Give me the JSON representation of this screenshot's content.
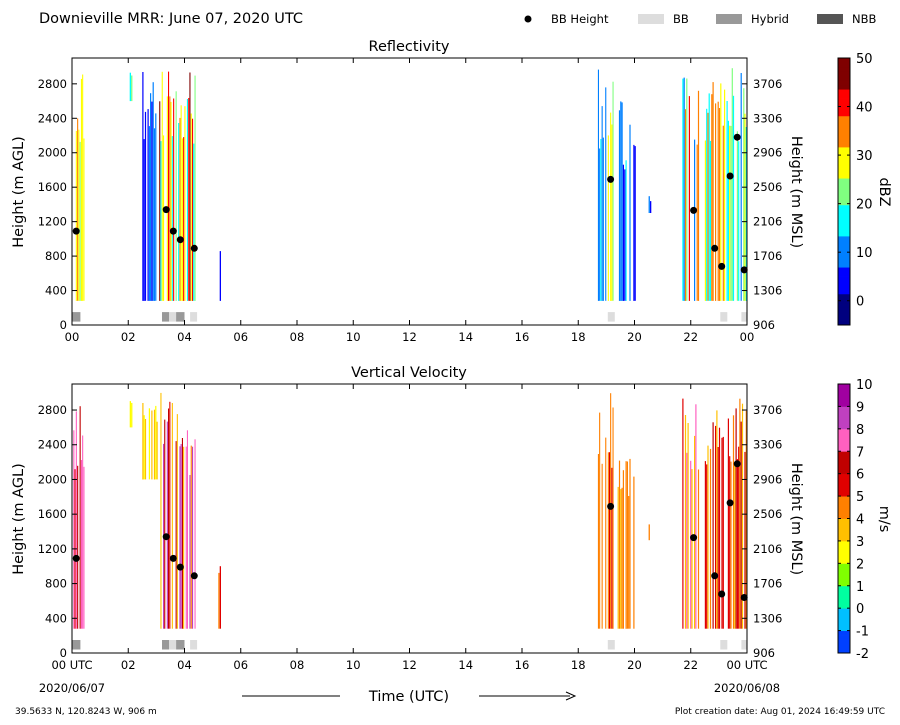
{
  "header": {
    "title": "Downieville MRR:  June 07, 2020 UTC",
    "legend": [
      {
        "label": "BB Height",
        "kind": "dot",
        "color": "#000000"
      },
      {
        "label": "BB",
        "kind": "box",
        "color": "#dddddd"
      },
      {
        "label": "Hybrid",
        "kind": "box",
        "color": "#999999"
      },
      {
        "label": "NBB",
        "kind": "box",
        "color": "#555555"
      }
    ]
  },
  "footer": {
    "location": "39.5633 N, 120.8243 W, 906 m",
    "created": "Plot creation date: Aug 01, 2024 16:49:59 UTC",
    "time_label": "Time (UTC)"
  },
  "colors": {
    "bb": "#dddddd",
    "hybrid": "#999999",
    "nbb": "#555555",
    "refl_scale": [
      "#00007f",
      "#0000ff",
      "#0080ff",
      "#00ffff",
      "#80ff80",
      "#ffff00",
      "#ff8000",
      "#ff0000",
      "#7f0000"
    ],
    "vel_scale": [
      "#0040ff",
      "#00c0ff",
      "#00ffa0",
      "#80ff00",
      "#ffff00",
      "#ffc000",
      "#ff8000",
      "#e00000",
      "#c00000",
      "#ff60c0",
      "#c040c0",
      "#a000a0"
    ]
  },
  "chart_data": [
    {
      "type": "heatmap",
      "title": "Reflectivity",
      "xlabel": "",
      "ylabel": "Height (m AGL)",
      "ylabel_right": "Height (m MSL)",
      "xlim": [
        0,
        24
      ],
      "ylim": [
        0,
        3100
      ],
      "x_ticks": [
        "00",
        "02",
        "04",
        "06",
        "08",
        "10",
        "12",
        "14",
        "16",
        "18",
        "20",
        "22",
        "00"
      ],
      "y_ticks": [
        0,
        400,
        800,
        1200,
        1600,
        2000,
        2400,
        2800
      ],
      "y_ticks_right": [
        "906",
        "1306",
        "1706",
        "2106",
        "2506",
        "2906",
        "3306",
        "3706"
      ],
      "colorbar": {
        "label": "dBZ",
        "ticks": [
          0,
          10,
          20,
          30,
          40,
          50
        ],
        "range": [
          -5,
          50
        ]
      },
      "bb_height": [
        {
          "x": 0.15,
          "y": 1090
        },
        {
          "x": 3.35,
          "y": 1340
        },
        {
          "x": 3.6,
          "y": 1090
        },
        {
          "x": 3.85,
          "y": 990
        },
        {
          "x": 4.35,
          "y": 890
        },
        {
          "x": 19.15,
          "y": 1690
        },
        {
          "x": 22.1,
          "y": 1330
        },
        {
          "x": 22.85,
          "y": 890
        },
        {
          "x": 23.1,
          "y": 680
        },
        {
          "x": 23.4,
          "y": 1730
        },
        {
          "x": 23.65,
          "y": 2180
        },
        {
          "x": 23.9,
          "y": 640
        }
      ],
      "bb_type": [
        {
          "x0": 0.0,
          "x1": 0.3,
          "type": "hybrid"
        },
        {
          "x0": 3.2,
          "x1": 3.45,
          "type": "hybrid"
        },
        {
          "x0": 3.45,
          "x1": 3.7,
          "type": "bb"
        },
        {
          "x0": 3.7,
          "x1": 4.0,
          "type": "hybrid"
        },
        {
          "x0": 4.2,
          "x1": 4.45,
          "type": "bb"
        },
        {
          "x0": 19.05,
          "x1": 19.3,
          "type": "bb"
        },
        {
          "x0": 23.05,
          "x1": 23.3,
          "type": "bb"
        },
        {
          "x0": 23.8,
          "x1": 24.0,
          "type": "bb"
        }
      ],
      "precip_periods": [
        {
          "x0": 0.0,
          "x1": 0.45,
          "ybot": 280,
          "ytop": 3000,
          "level": [
            20,
            40
          ]
        },
        {
          "x0": 2.05,
          "x1": 2.15,
          "ybot": 2600,
          "ytop": 3000,
          "level": [
            15,
            25
          ]
        },
        {
          "x0": 2.5,
          "x1": 3.05,
          "ybot": 280,
          "ytop": 3000,
          "level": [
            5,
            15
          ]
        },
        {
          "x0": 3.1,
          "x1": 4.4,
          "ybot": 280,
          "ytop": 3000,
          "level": [
            15,
            45
          ]
        },
        {
          "x0": 5.2,
          "x1": 5.3,
          "ybot": 280,
          "ytop": 1000,
          "level": [
            0,
            5
          ]
        },
        {
          "x0": 18.7,
          "x1": 19.0,
          "ybot": 280,
          "ytop": 3000,
          "level": [
            5,
            15
          ]
        },
        {
          "x0": 19.05,
          "x1": 19.3,
          "ybot": 280,
          "ytop": 3000,
          "level": [
            20,
            30
          ]
        },
        {
          "x0": 19.4,
          "x1": 20.05,
          "ybot": 280,
          "ytop": 2600,
          "level": [
            5,
            15
          ]
        },
        {
          "x0": 20.5,
          "x1": 20.6,
          "ybot": 1300,
          "ytop": 1500,
          "level": [
            5,
            10
          ]
        },
        {
          "x0": 21.7,
          "x1": 22.3,
          "ybot": 280,
          "ytop": 3000,
          "level": [
            10,
            40
          ]
        },
        {
          "x0": 22.5,
          "x1": 24.0,
          "ybot": 280,
          "ytop": 3000,
          "level": [
            10,
            35
          ]
        }
      ]
    },
    {
      "type": "heatmap",
      "title": "Vertical Velocity",
      "xlabel": "Time (UTC)",
      "ylabel": "Height (m AGL)",
      "ylabel_right": "Height (m MSL)",
      "xlim": [
        0,
        24
      ],
      "ylim": [
        0,
        3100
      ],
      "x_ticks": [
        "00 UTC",
        "02",
        "04",
        "06",
        "08",
        "10",
        "12",
        "14",
        "16",
        "18",
        "20",
        "22",
        "00 UTC"
      ],
      "x_dates": [
        "2020/06/07",
        "2020/06/08"
      ],
      "y_ticks": [
        0,
        400,
        800,
        1200,
        1600,
        2000,
        2400,
        2800
      ],
      "y_ticks_right": [
        "906",
        "1306",
        "1706",
        "2106",
        "2506",
        "2906",
        "3306",
        "3706"
      ],
      "colorbar": {
        "label": "m/s",
        "ticks": [
          -2,
          -1,
          0,
          1,
          2,
          3,
          4,
          5,
          6,
          7,
          8,
          9,
          10
        ],
        "range": [
          -2,
          10
        ]
      },
      "bb_height": [
        {
          "x": 0.15,
          "y": 1090
        },
        {
          "x": 3.35,
          "y": 1340
        },
        {
          "x": 3.6,
          "y": 1090
        },
        {
          "x": 3.85,
          "y": 990
        },
        {
          "x": 4.35,
          "y": 890
        },
        {
          "x": 19.15,
          "y": 1690
        },
        {
          "x": 22.1,
          "y": 1330
        },
        {
          "x": 22.85,
          "y": 890
        },
        {
          "x": 23.1,
          "y": 680
        },
        {
          "x": 23.4,
          "y": 1730
        },
        {
          "x": 23.65,
          "y": 2180
        },
        {
          "x": 23.9,
          "y": 640
        }
      ],
      "bb_type": [
        {
          "x0": 0.0,
          "x1": 0.3,
          "type": "hybrid"
        },
        {
          "x0": 3.2,
          "x1": 3.45,
          "type": "hybrid"
        },
        {
          "x0": 3.45,
          "x1": 3.7,
          "type": "bb"
        },
        {
          "x0": 3.7,
          "x1": 4.0,
          "type": "hybrid"
        },
        {
          "x0": 4.2,
          "x1": 4.45,
          "type": "bb"
        },
        {
          "x0": 19.05,
          "x1": 19.3,
          "type": "bb"
        },
        {
          "x0": 23.05,
          "x1": 23.3,
          "type": "bb"
        },
        {
          "x0": 23.8,
          "x1": 24.0,
          "type": "bb"
        }
      ],
      "precip_periods": [
        {
          "x0": 0.0,
          "x1": 0.45,
          "ybot": 280,
          "ytop": 3000,
          "level": [
            5,
            8
          ]
        },
        {
          "x0": 2.05,
          "x1": 2.15,
          "ybot": 2600,
          "ytop": 3000,
          "level": [
            2,
            3
          ]
        },
        {
          "x0": 2.5,
          "x1": 3.05,
          "ybot": 2000,
          "ytop": 3000,
          "level": [
            2,
            4
          ]
        },
        {
          "x0": 3.1,
          "x1": 4.4,
          "ybot": 280,
          "ytop": 3000,
          "level": [
            3,
            9
          ]
        },
        {
          "x0": 5.2,
          "x1": 5.3,
          "ybot": 280,
          "ytop": 1000,
          "level": [
            4,
            6
          ]
        },
        {
          "x0": 18.7,
          "x1": 19.0,
          "ybot": 280,
          "ytop": 3000,
          "level": [
            4,
            6
          ]
        },
        {
          "x0": 19.05,
          "x1": 19.3,
          "ybot": 280,
          "ytop": 3000,
          "level": [
            4,
            6
          ]
        },
        {
          "x0": 19.4,
          "x1": 20.05,
          "ybot": 280,
          "ytop": 2600,
          "level": [
            3,
            5
          ]
        },
        {
          "x0": 20.5,
          "x1": 20.6,
          "ybot": 1300,
          "ytop": 1500,
          "level": [
            4,
            5
          ]
        },
        {
          "x0": 21.7,
          "x1": 22.3,
          "ybot": 280,
          "ytop": 3000,
          "level": [
            3,
            8
          ]
        },
        {
          "x0": 22.5,
          "x1": 24.0,
          "ybot": 280,
          "ytop": 3000,
          "level": [
            3,
            7
          ]
        }
      ]
    }
  ]
}
